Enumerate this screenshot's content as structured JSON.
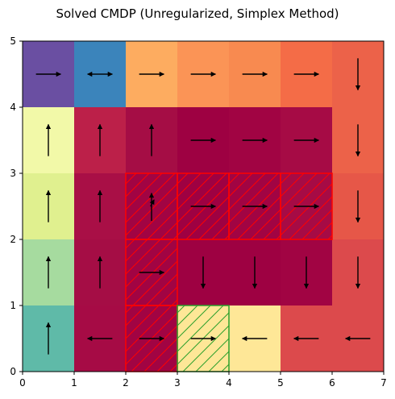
{
  "chart_data": {
    "type": "heatmap",
    "title": "Solved CMDP (Unregularized, Simplex Method)",
    "xlabel": "",
    "ylabel": "",
    "xlim": [
      0,
      7
    ],
    "ylim": [
      0,
      5
    ],
    "x_ticks": [
      "0",
      "1",
      "2",
      "3",
      "4",
      "5",
      "6",
      "7"
    ],
    "y_ticks": [
      "0",
      "1",
      "2",
      "3",
      "4",
      "5"
    ],
    "grid": false,
    "cells": [
      {
        "col": 0,
        "row": 4,
        "color": "#6a4fa2",
        "action": "right"
      },
      {
        "col": 1,
        "row": 4,
        "color": "#3b84bb",
        "action": "left-right"
      },
      {
        "col": 2,
        "row": 4,
        "color": "#fdac60",
        "action": "right"
      },
      {
        "col": 3,
        "row": 4,
        "color": "#fb9456",
        "action": "right"
      },
      {
        "col": 4,
        "row": 4,
        "color": "#f88a50",
        "action": "right"
      },
      {
        "col": 5,
        "row": 4,
        "color": "#f46c47",
        "action": "right"
      },
      {
        "col": 6,
        "row": 4,
        "color": "#ec6249",
        "action": "down"
      },
      {
        "col": 0,
        "row": 3,
        "color": "#f2f9a8",
        "action": "up"
      },
      {
        "col": 1,
        "row": 3,
        "color": "#bc2049",
        "action": "up"
      },
      {
        "col": 2,
        "row": 3,
        "color": "#a50d45",
        "action": "up"
      },
      {
        "col": 3,
        "row": 3,
        "color": "#9e0142",
        "action": "right"
      },
      {
        "col": 4,
        "row": 3,
        "color": "#a10443",
        "action": "right"
      },
      {
        "col": 5,
        "row": 3,
        "color": "#a60b45",
        "action": "right"
      },
      {
        "col": 6,
        "row": 3,
        "color": "#ec6249",
        "action": "down"
      },
      {
        "col": 0,
        "row": 2,
        "color": "#e0f08f",
        "action": "up"
      },
      {
        "col": 1,
        "row": 2,
        "color": "#a90f46",
        "action": "up"
      },
      {
        "col": 2,
        "row": 2,
        "color": "#a10443",
        "action": "up-right"
      },
      {
        "col": 3,
        "row": 2,
        "color": "#9e0142",
        "action": "right"
      },
      {
        "col": 4,
        "row": 2,
        "color": "#a10443",
        "action": "right"
      },
      {
        "col": 5,
        "row": 2,
        "color": "#a60b45",
        "action": "right"
      },
      {
        "col": 6,
        "row": 2,
        "color": "#e65748",
        "action": "down"
      },
      {
        "col": 0,
        "row": 1,
        "color": "#a6db9f",
        "action": "up"
      },
      {
        "col": 1,
        "row": 1,
        "color": "#a50d45",
        "action": "up"
      },
      {
        "col": 2,
        "row": 1,
        "color": "#a10443",
        "action": "right"
      },
      {
        "col": 3,
        "row": 1,
        "color": "#9e0142",
        "action": "down"
      },
      {
        "col": 4,
        "row": 1,
        "color": "#9e0142",
        "action": "down"
      },
      {
        "col": 5,
        "row": 1,
        "color": "#a10443",
        "action": "down"
      },
      {
        "col": 6,
        "row": 1,
        "color": "#dc4a4c",
        "action": "down"
      },
      {
        "col": 0,
        "row": 0,
        "color": "#5fbaa8",
        "action": "up"
      },
      {
        "col": 1,
        "row": 0,
        "color": "#a60b45",
        "action": "left"
      },
      {
        "col": 2,
        "row": 0,
        "color": "#a10443",
        "action": "right"
      },
      {
        "col": 3,
        "row": 0,
        "color": "#fee797",
        "action": "right"
      },
      {
        "col": 4,
        "row": 0,
        "color": "#fee797",
        "action": "left"
      },
      {
        "col": 5,
        "row": 0,
        "color": "#dc4a4c",
        "action": "left"
      },
      {
        "col": 6,
        "row": 0,
        "color": "#dc4a4c",
        "action": "left"
      }
    ],
    "constraint_cells": [
      {
        "col": 2,
        "row": 2
      },
      {
        "col": 3,
        "row": 2
      },
      {
        "col": 4,
        "row": 2
      },
      {
        "col": 5,
        "row": 2
      },
      {
        "col": 2,
        "row": 1
      },
      {
        "col": 2,
        "row": 0
      }
    ],
    "goal_cells": [
      {
        "col": 3,
        "row": 0
      }
    ],
    "colors": {
      "constraint_hatch": "#ff0000",
      "goal_hatch": "#2ca02c",
      "arrow": "#000000"
    }
  }
}
